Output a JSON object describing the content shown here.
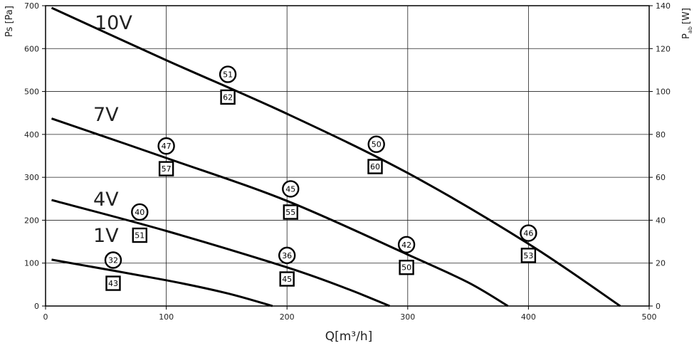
{
  "chart_data": {
    "type": "line",
    "xlabel": "Q[m³/h]",
    "ylabel": "Ps [Pa]",
    "y2label": "P",
    "y2label_sub": "ab",
    "y2label_unit": "[W]",
    "xlim": [
      0,
      500
    ],
    "ylim": [
      0,
      700
    ],
    "y2lim": [
      0,
      140
    ],
    "x_ticks": [
      "0",
      "100",
      "200",
      "300",
      "400",
      "500"
    ],
    "y_ticks": [
      "0",
      "100",
      "200",
      "300",
      "400",
      "500",
      "600",
      "700"
    ],
    "y2_ticks": [
      "0",
      "20",
      "40",
      "60",
      "80",
      "100",
      "120",
      "140"
    ],
    "grid": true,
    "series": [
      {
        "name": "10V",
        "x": [
          5,
          100,
          200,
          300,
          400,
          476
        ],
        "y": [
          695,
          573,
          448,
          310,
          145,
          0
        ]
      },
      {
        "name": "7V",
        "x": [
          5,
          100,
          200,
          300,
          350,
          383
        ],
        "y": [
          437,
          345,
          245,
          120,
          55,
          0
        ]
      },
      {
        "name": "4V",
        "x": [
          5,
          100,
          200,
          250,
          285
        ],
        "y": [
          247,
          175,
          90,
          40,
          0
        ]
      },
      {
        "name": "1V",
        "x": [
          5,
          100,
          150,
          188
        ],
        "y": [
          108,
          60,
          30,
          0
        ]
      }
    ],
    "circle_markers": [
      {
        "label": "51",
        "x": 151,
        "y": 540
      },
      {
        "label": "50",
        "x": 274,
        "y": 377
      },
      {
        "label": "46",
        "x": 400,
        "y": 170
      },
      {
        "label": "47",
        "x": 100,
        "y": 373
      },
      {
        "label": "45",
        "x": 203,
        "y": 273
      },
      {
        "label": "42",
        "x": 299,
        "y": 143
      },
      {
        "label": "40",
        "x": 78,
        "y": 219
      },
      {
        "label": "36",
        "x": 200,
        "y": 118
      },
      {
        "label": "32",
        "x": 56,
        "y": 107
      }
    ],
    "square_markers": [
      {
        "label": "62",
        "x": 151,
        "y": 487
      },
      {
        "label": "60",
        "x": 273,
        "y": 325
      },
      {
        "label": "53",
        "x": 400,
        "y": 118
      },
      {
        "label": "57",
        "x": 100,
        "y": 320
      },
      {
        "label": "55",
        "x": 203,
        "y": 219
      },
      {
        "label": "50",
        "x": 299,
        "y": 90
      },
      {
        "label": "51",
        "x": 78,
        "y": 165
      },
      {
        "label": "45",
        "x": 200,
        "y": 63
      },
      {
        "label": "43",
        "x": 56,
        "y": 53
      }
    ]
  }
}
